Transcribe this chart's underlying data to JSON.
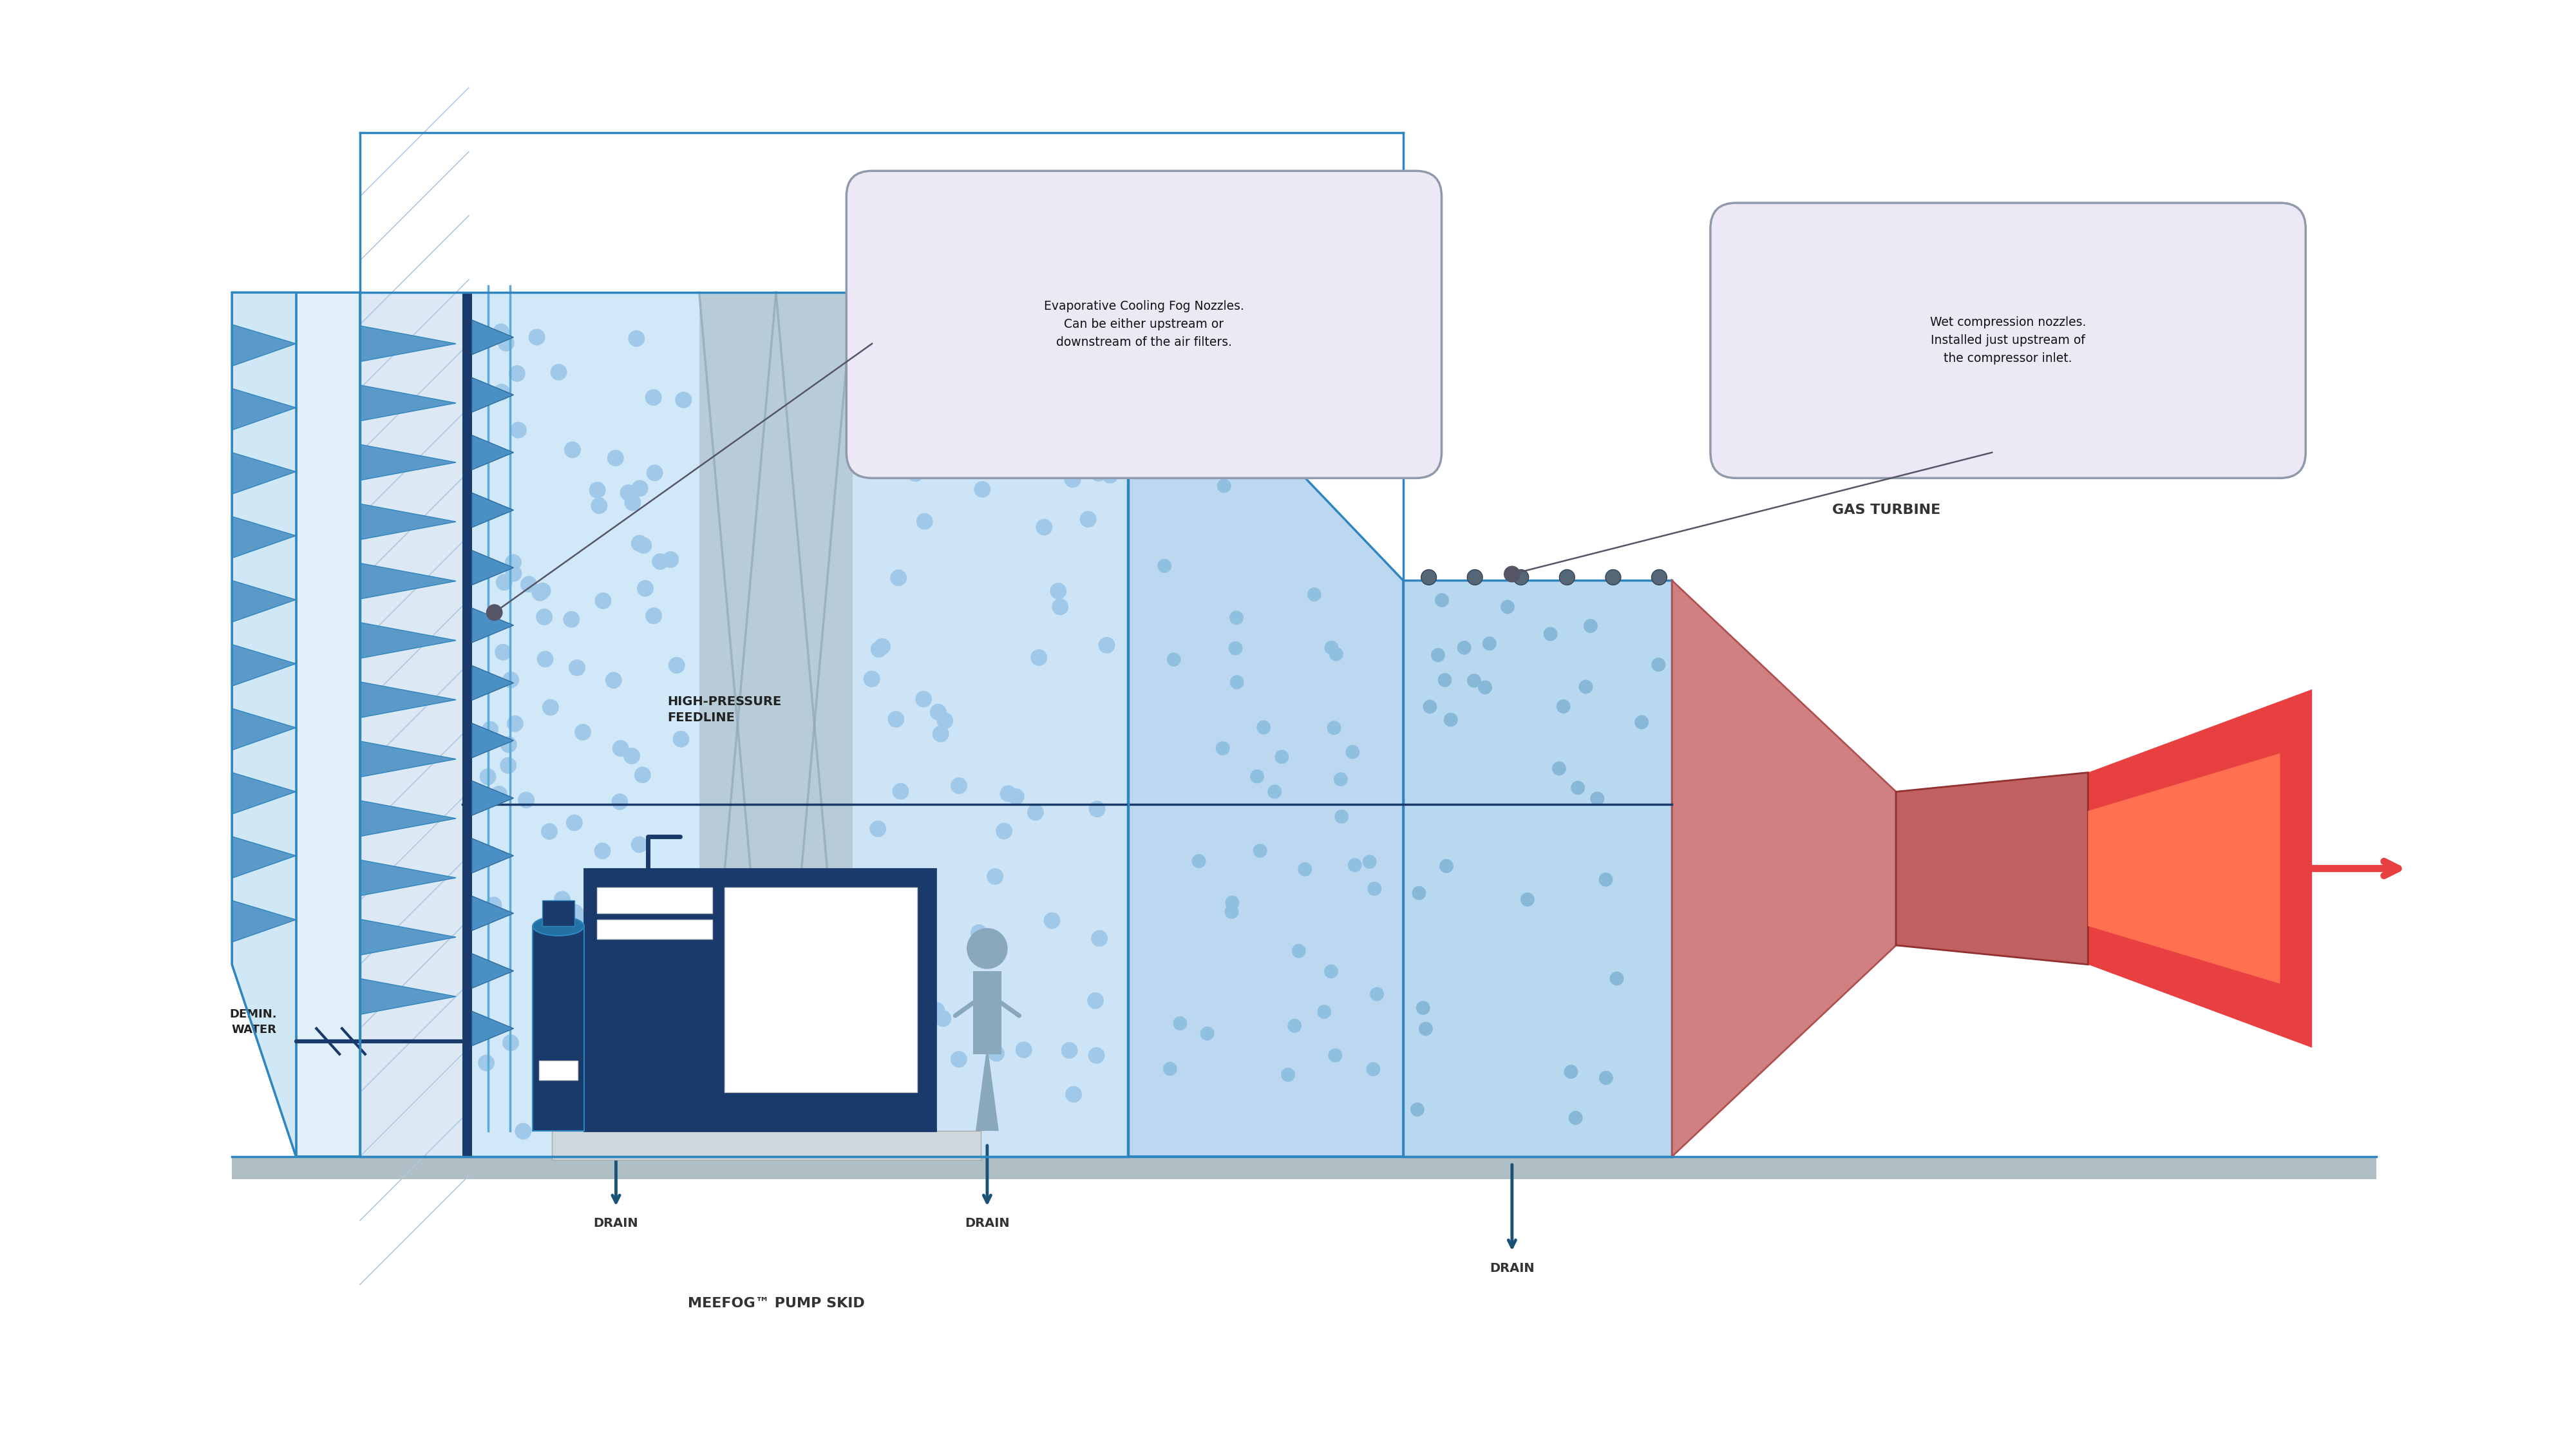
{
  "bg_color": "#ffffff",
  "light_blue": "#d6eaf8",
  "mid_blue": "#aed6f1",
  "dark_blue_line": "#2e86c1",
  "navy": "#1a3a6b",
  "light_gray": "#cfd8dc",
  "arrow_blue": "#1a5276",
  "callout_bg": "#ede8f5",
  "callout_border": "#7f8c8d",
  "label1": "Evaporative Cooling Fog Nozzles.\nCan be either upstream or\ndownstream of the air filters.",
  "label2": "Wet compression nozzles.\nInstalled just upstream of\nthe compressor inlet.",
  "label3": "DRAIN",
  "label4": "DRAIN",
  "label5": "DRAIN",
  "label6": "HIGH-PRESSURE\nFEEDLINE",
  "label7": "DEMIN.\nWATER",
  "label8": "MEEFOG™ PUMP SKID",
  "label9": "GAS TURBINE"
}
